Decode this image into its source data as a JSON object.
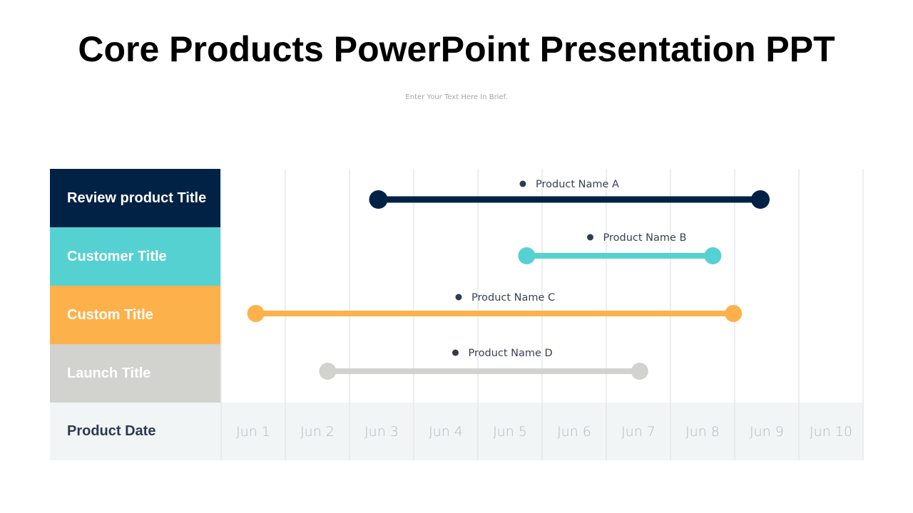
{
  "title": "Core Products PowerPoint Presentation PPT",
  "subtitle": "Enter Your Text Here In Brief.",
  "chart_data": {
    "type": "gantt",
    "footer_label": "Product Date",
    "x_ticks": [
      "Jun 1",
      "Jun 2",
      "Jun 3",
      "Jun 4",
      "Jun 5",
      "Jun 6",
      "Jun 7",
      "Jun 8",
      "Jun 9",
      "Jun 10"
    ],
    "grid": true,
    "rows": [
      {
        "category": "Review product Title",
        "color": "#012245",
        "series": "Product Name A",
        "start": 2.95,
        "end": 8.9,
        "label_pos": 5.2
      },
      {
        "category": "Customer Title",
        "color": "#56d1d2",
        "series": "Product Name B",
        "start": 5.26,
        "end": 8.16,
        "label_pos": 6.25
      },
      {
        "category": "Custom Title",
        "color": "#fdb14b",
        "series": "Product Name C",
        "start": 1.04,
        "end": 8.48,
        "label_pos": 4.2
      },
      {
        "category": "Launch Title",
        "color": "#d2d2cf",
        "series": "Product Name D",
        "start": 2.16,
        "end": 7.02,
        "label_pos": 4.15
      }
    ]
  }
}
